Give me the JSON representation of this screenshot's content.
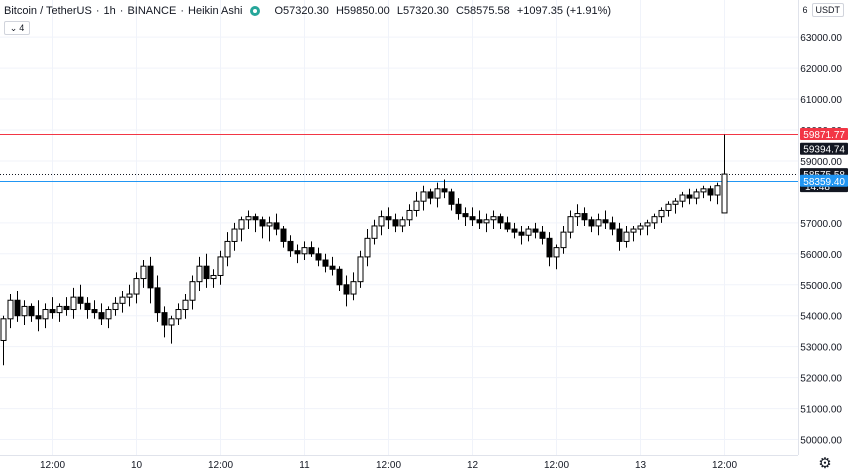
{
  "header": {
    "symbol": "Bitcoin / TetherUS",
    "interval": "1h",
    "exchange": "BINANCE",
    "chart_style": "Heikin Ashi",
    "separator": "·",
    "open_label": "O",
    "open_value": "57320.30",
    "high_label": "H",
    "high_value": "59850.00",
    "low_label": "L",
    "low_value": "57320.30",
    "close_label": "C",
    "close_value": "58575.58",
    "change": "+1097.35 (+1.91%)",
    "status_color": "#26a69a"
  },
  "indicators_toggle": {
    "count": "4",
    "icon": "chevron-down-icon"
  },
  "price_scale": {
    "currency": "USDT",
    "currency_prefix": "6",
    "settings_icon": "gear-icon"
  },
  "colors": {
    "up_body": "#ffffff",
    "down_body": "#000000",
    "candle_outline": "#000000",
    "grid": "#f0f3fa",
    "high_line": "#f23645",
    "last_price_bg": "#131722",
    "blue_line": "#2962ff",
    "low_line_bg": "#2196f3"
  },
  "chart_data": {
    "type": "candlestick",
    "style": "Heikin Ashi",
    "ylim": [
      49500,
      64200
    ],
    "y_ticks": [
      "63000.00",
      "62000.00",
      "61000.00",
      "60000.00",
      "59000.00",
      "57000.00",
      "56000.00",
      "55000.00",
      "54000.00",
      "53000.00",
      "52000.00",
      "51000.00",
      "50000.00"
    ],
    "x_ticks": [
      {
        "label": "12:00",
        "index": 7
      },
      {
        "label": "10",
        "index": 19
      },
      {
        "label": "12:00",
        "index": 31
      },
      {
        "label": "11",
        "index": 43
      },
      {
        "label": "12:00",
        "index": 55
      },
      {
        "label": "12",
        "index": 67
      },
      {
        "label": "12:00",
        "index": 79
      },
      {
        "label": "13",
        "index": 91
      },
      {
        "label": "12:00",
        "index": 103
      }
    ],
    "candle_count": 104,
    "grid": true,
    "markers": [
      {
        "label": "59871.77",
        "value": 59871.77,
        "kind": "high",
        "color": "#f23645",
        "line": "solid"
      },
      {
        "label": "59394.74",
        "value": 59394.74,
        "kind": "price",
        "color": "#131722",
        "line": "none"
      },
      {
        "label": "58575.58",
        "label2": "14:48",
        "value": 58575.58,
        "kind": "last",
        "color": "#131722",
        "line": "dotted"
      },
      {
        "label": "58359.40",
        "value": 58359.4,
        "kind": "low",
        "color": "#2196f3",
        "line": "solid"
      }
    ],
    "candles": [
      [
        53200,
        54000,
        52400,
        53900
      ],
      [
        53900,
        54700,
        53600,
        54500
      ],
      [
        54500,
        54800,
        53800,
        54000
      ],
      [
        54000,
        54500,
        53700,
        54300
      ],
      [
        54300,
        54400,
        53800,
        54000
      ],
      [
        54000,
        54500,
        53500,
        53900
      ],
      [
        53900,
        54400,
        53600,
        54200
      ],
      [
        54200,
        54600,
        53900,
        54100
      ],
      [
        54100,
        54400,
        53800,
        54300
      ],
      [
        54300,
        54600,
        54000,
        54200
      ],
      [
        54200,
        54900,
        53900,
        54600
      ],
      [
        54600,
        55000,
        54200,
        54400
      ],
      [
        54400,
        54600,
        53900,
        54200
      ],
      [
        54200,
        54500,
        53900,
        54100
      ],
      [
        54100,
        54400,
        53700,
        53900
      ],
      [
        53900,
        54300,
        53600,
        54200
      ],
      [
        54200,
        54600,
        54000,
        54400
      ],
      [
        54400,
        54800,
        54100,
        54600
      ],
      [
        54600,
        55000,
        54300,
        54700
      ],
      [
        54700,
        55400,
        54400,
        55200
      ],
      [
        55200,
        55800,
        54900,
        55600
      ],
      [
        55600,
        55900,
        54400,
        54900
      ],
      [
        54900,
        55300,
        53800,
        54100
      ],
      [
        54100,
        54300,
        53300,
        53700
      ],
      [
        53700,
        54000,
        53100,
        53900
      ],
      [
        53900,
        54400,
        53700,
        54200
      ],
      [
        54200,
        54700,
        53900,
        54500
      ],
      [
        54500,
        55300,
        54200,
        55100
      ],
      [
        55100,
        55900,
        54800,
        55600
      ],
      [
        55600,
        56000,
        54900,
        55200
      ],
      [
        55200,
        55500,
        54900,
        55300
      ],
      [
        55300,
        56100,
        55000,
        55900
      ],
      [
        55900,
        56700,
        55600,
        56400
      ],
      [
        56400,
        57000,
        56100,
        56800
      ],
      [
        56800,
        57200,
        56400,
        57100
      ],
      [
        57100,
        57400,
        56800,
        57200
      ],
      [
        57200,
        57300,
        56700,
        57100
      ],
      [
        57100,
        57200,
        56500,
        56900
      ],
      [
        56900,
        57200,
        56400,
        57000
      ],
      [
        57000,
        57300,
        56600,
        56800
      ],
      [
        56800,
        56900,
        56200,
        56400
      ],
      [
        56400,
        56600,
        55900,
        56100
      ],
      [
        56100,
        56300,
        55700,
        56000
      ],
      [
        56000,
        56400,
        55800,
        56200
      ],
      [
        56200,
        56400,
        55900,
        56000
      ],
      [
        56000,
        56200,
        55600,
        55800
      ],
      [
        55800,
        56000,
        55400,
        55600
      ],
      [
        55600,
        55900,
        55300,
        55500
      ],
      [
        55500,
        55600,
        54800,
        55000
      ],
      [
        55000,
        55300,
        54300,
        54700
      ],
      [
        54700,
        55400,
        54500,
        55100
      ],
      [
        55100,
        56100,
        54900,
        55900
      ],
      [
        55900,
        56800,
        55600,
        56500
      ],
      [
        56500,
        57100,
        56300,
        56900
      ],
      [
        56900,
        57400,
        56600,
        57200
      ],
      [
        57200,
        57500,
        56800,
        57100
      ],
      [
        57100,
        57300,
        56700,
        56900
      ],
      [
        56900,
        57200,
        56700,
        57100
      ],
      [
        57100,
        57600,
        56900,
        57400
      ],
      [
        57400,
        58000,
        57200,
        57700
      ],
      [
        57700,
        58200,
        57400,
        58000
      ],
      [
        58000,
        58100,
        57600,
        57800
      ],
      [
        57800,
        58300,
        57500,
        58100
      ],
      [
        58100,
        58400,
        57800,
        58000
      ],
      [
        58000,
        58100,
        57400,
        57600
      ],
      [
        57600,
        57800,
        57100,
        57300
      ],
      [
        57300,
        57500,
        56900,
        57200
      ],
      [
        57200,
        57500,
        56900,
        57100
      ],
      [
        57100,
        57400,
        56800,
        57000
      ],
      [
        57000,
        57300,
        56700,
        57100
      ],
      [
        57100,
        57400,
        56800,
        57200
      ],
      [
        57200,
        57300,
        56800,
        57000
      ],
      [
        57000,
        57200,
        56700,
        56800
      ],
      [
        56800,
        57000,
        56500,
        56700
      ],
      [
        56700,
        56900,
        56300,
        56600
      ],
      [
        56600,
        56900,
        56400,
        56800
      ],
      [
        56800,
        57000,
        56500,
        56700
      ],
      [
        56700,
        56900,
        56300,
        56500
      ],
      [
        56500,
        56700,
        55600,
        55900
      ],
      [
        55900,
        56300,
        55500,
        56200
      ],
      [
        56200,
        56900,
        56000,
        56700
      ],
      [
        56700,
        57400,
        56500,
        57200
      ],
      [
        57200,
        57600,
        56900,
        57300
      ],
      [
        57300,
        57500,
        56900,
        57100
      ],
      [
        57100,
        57200,
        56700,
        56900
      ],
      [
        56900,
        57300,
        56600,
        57100
      ],
      [
        57100,
        57400,
        56800,
        57000
      ],
      [
        57000,
        57200,
        56600,
        56800
      ],
      [
        56800,
        57000,
        56100,
        56400
      ],
      [
        56400,
        56900,
        56200,
        56700
      ],
      [
        56700,
        56900,
        56400,
        56800
      ],
      [
        56800,
        57000,
        56600,
        56900
      ],
      [
        56900,
        57100,
        56600,
        57000
      ],
      [
        57000,
        57300,
        56800,
        57200
      ],
      [
        57200,
        57500,
        57000,
        57400
      ],
      [
        57400,
        57700,
        57200,
        57600
      ],
      [
        57600,
        57800,
        57300,
        57700
      ],
      [
        57700,
        58000,
        57500,
        57900
      ],
      [
        57900,
        58100,
        57600,
        57800
      ],
      [
        57800,
        58100,
        57600,
        58000
      ],
      [
        58000,
        58200,
        57800,
        58100
      ],
      [
        58100,
        58200,
        57700,
        57900
      ],
      [
        57900,
        58300,
        57600,
        58200
      ],
      [
        57320.3,
        59850,
        57320.3,
        58575.58
      ]
    ]
  }
}
